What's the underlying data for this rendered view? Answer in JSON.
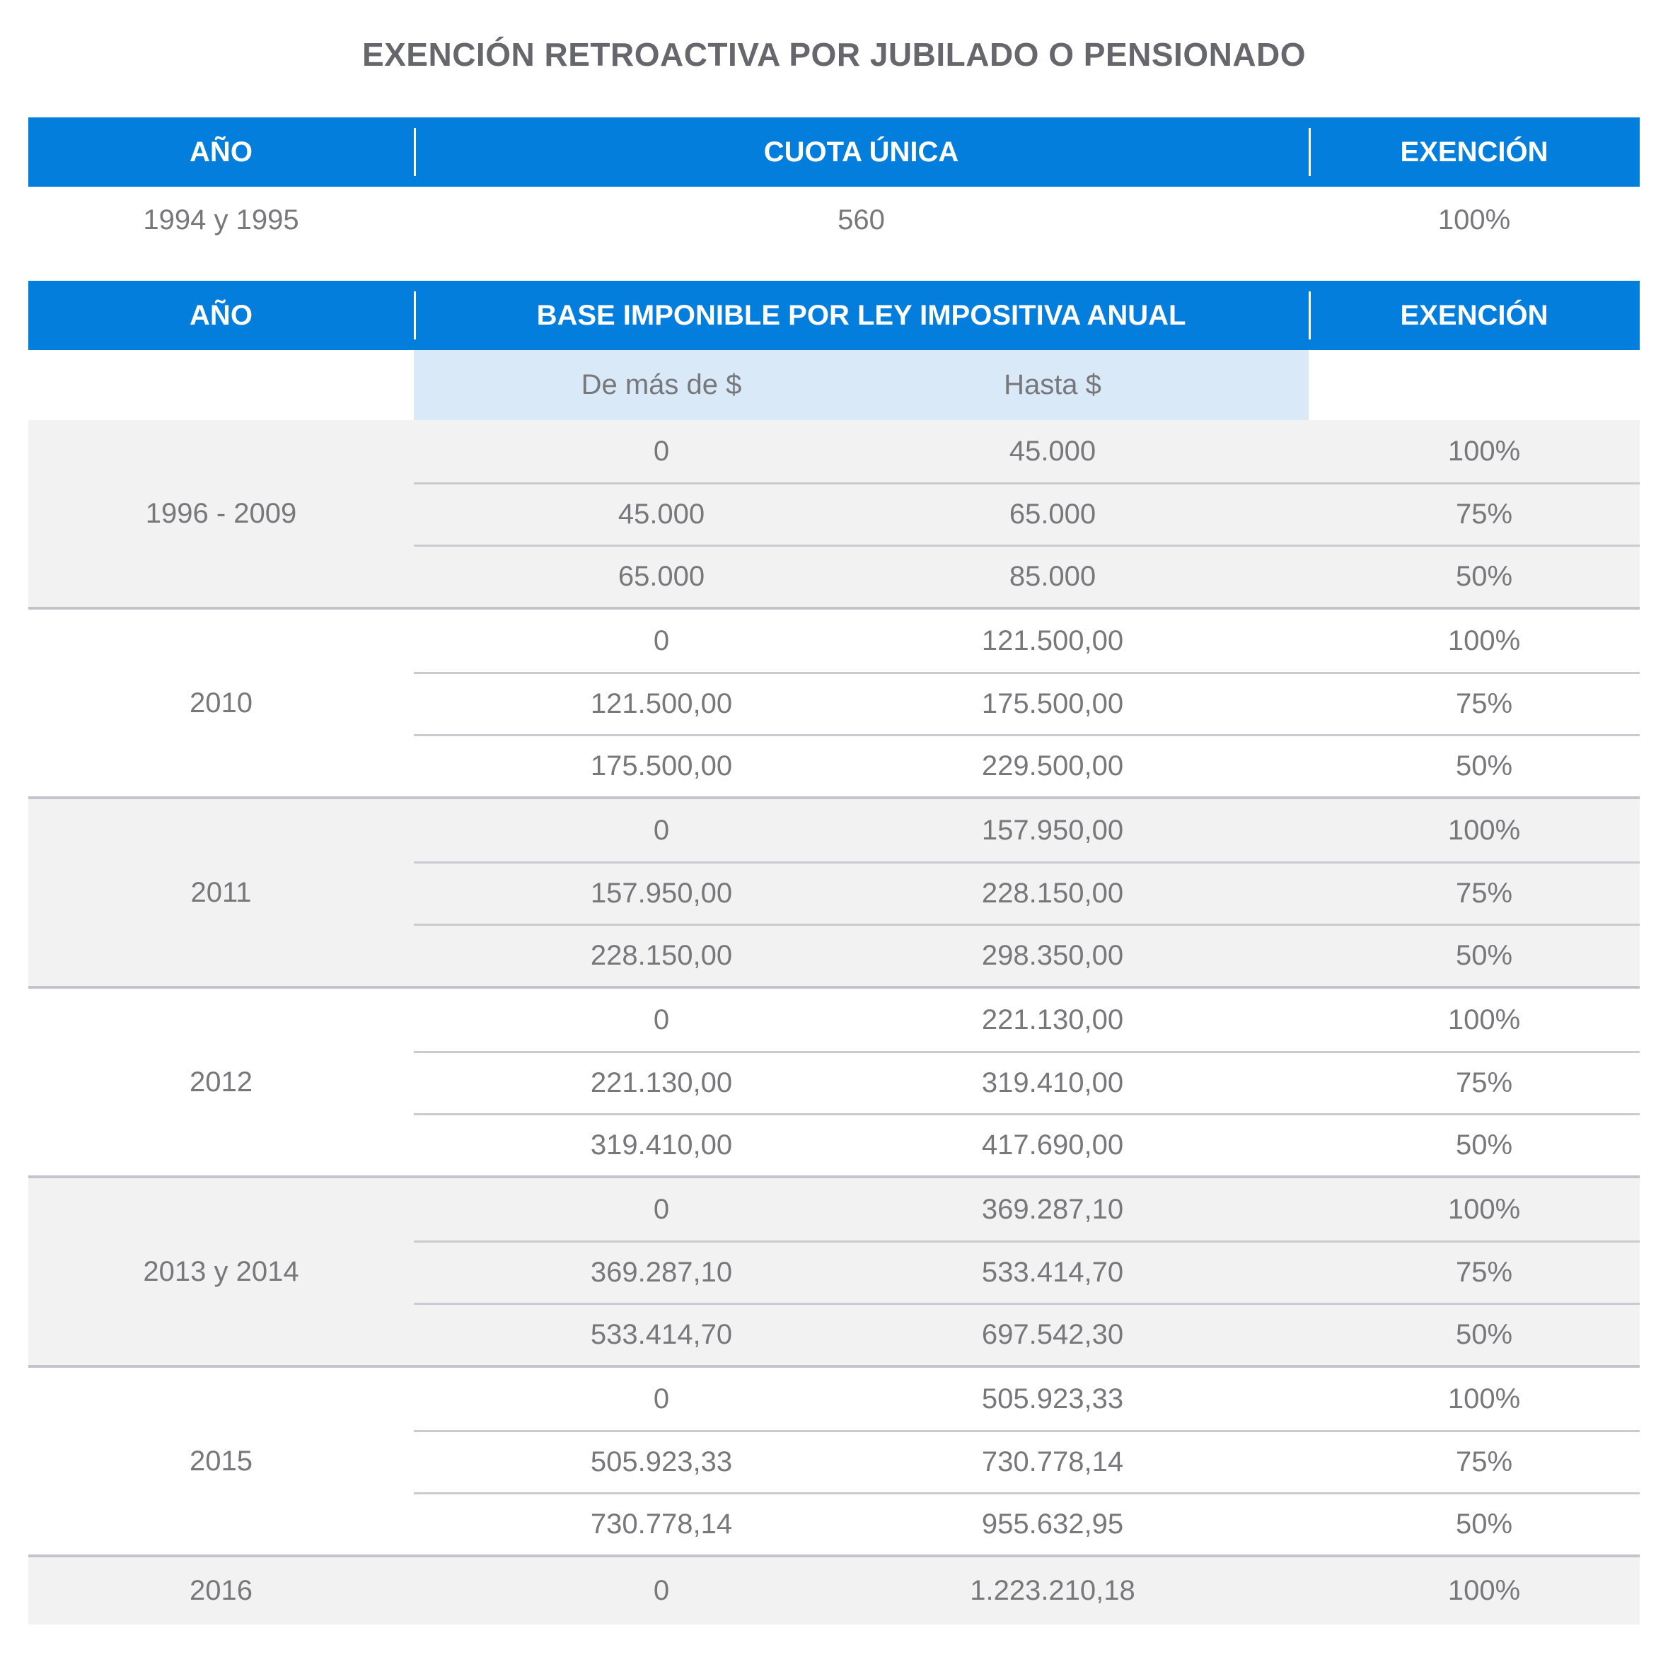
{
  "title": "EXENCIÓN RETROACTIVA POR JUBILADO O PENSIONADO",
  "colors": {
    "header_blue": "#047edc",
    "subheader_blue": "#d9e9f7",
    "row_gray": "#f2f2f3",
    "text_gray": "#77787c",
    "title_gray": "#66676c",
    "inner_divider": "#c8cbd0",
    "group_divider": "#c2c4cb"
  },
  "table_cuota_unica": {
    "headers": {
      "year": "AÑO",
      "middle": "CUOTA ÚNICA",
      "exemption": "EXENCIÓN"
    },
    "row": {
      "year": "1994 y 1995",
      "value": "560",
      "exemption": "100%"
    }
  },
  "table_base_imponible": {
    "headers": {
      "year": "AÑO",
      "middle": "BASE IMPONIBLE POR LEY IMPOSITIVA ANUAL",
      "exemption": "EXENCIÓN"
    },
    "subheaders": {
      "from": "De más de $",
      "to": "Hasta $"
    },
    "groups": [
      {
        "year": "1996 - 2009",
        "rows": [
          {
            "from": "0",
            "to": "45.000",
            "exemption": "100%"
          },
          {
            "from": "45.000",
            "to": "65.000",
            "exemption": "75%"
          },
          {
            "from": "65.000",
            "to": "85.000",
            "exemption": "50%"
          }
        ]
      },
      {
        "year": "2010",
        "rows": [
          {
            "from": "0",
            "to": "121.500,00",
            "exemption": "100%"
          },
          {
            "from": "121.500,00",
            "to": "175.500,00",
            "exemption": "75%"
          },
          {
            "from": "175.500,00",
            "to": "229.500,00",
            "exemption": "50%"
          }
        ]
      },
      {
        "year": "2011",
        "rows": [
          {
            "from": "0",
            "to": "157.950,00",
            "exemption": "100%"
          },
          {
            "from": "157.950,00",
            "to": "228.150,00",
            "exemption": "75%"
          },
          {
            "from": "228.150,00",
            "to": "298.350,00",
            "exemption": "50%"
          }
        ]
      },
      {
        "year": "2012",
        "rows": [
          {
            "from": "0",
            "to": "221.130,00",
            "exemption": "100%"
          },
          {
            "from": "221.130,00",
            "to": "319.410,00",
            "exemption": "75%"
          },
          {
            "from": "319.410,00",
            "to": "417.690,00",
            "exemption": "50%"
          }
        ]
      },
      {
        "year": "2013 y 2014",
        "rows": [
          {
            "from": "0",
            "to": "369.287,10",
            "exemption": "100%"
          },
          {
            "from": "369.287,10",
            "to": "533.414,70",
            "exemption": "75%"
          },
          {
            "from": "533.414,70",
            "to": "697.542,30",
            "exemption": "50%"
          }
        ]
      },
      {
        "year": "2015",
        "rows": [
          {
            "from": "0",
            "to": "505.923,33",
            "exemption": "100%"
          },
          {
            "from": "505.923,33",
            "to": "730.778,14",
            "exemption": "75%"
          },
          {
            "from": "730.778,14",
            "to": "955.632,95",
            "exemption": "50%"
          }
        ]
      },
      {
        "year": "2016",
        "rows": [
          {
            "from": "0",
            "to": "1.223.210,18",
            "exemption": "100%"
          }
        ]
      }
    ]
  }
}
